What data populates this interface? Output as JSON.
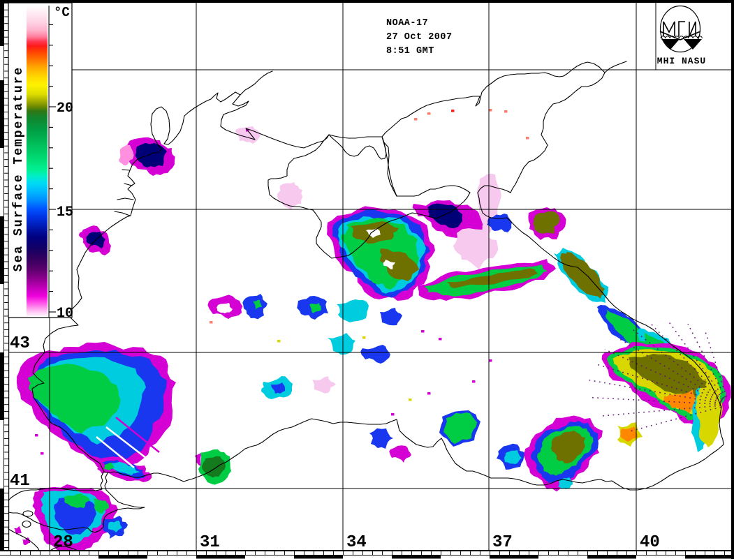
{
  "header": {
    "satellite": "NOAA-17",
    "date": "27 Oct 2007",
    "time": "8:51 GMT"
  },
  "logo": {
    "caption": "MHI NASU"
  },
  "colorbar": {
    "title": "Sea Surface Temperature",
    "unit": "°C",
    "scale_min": 10,
    "scale_max": 25,
    "ticks": [
      {
        "label": "20",
        "value": 20
      },
      {
        "label": "15",
        "value": 15
      },
      {
        "label": "10",
        "value": 10
      }
    ],
    "gradient_stops": [
      [
        0,
        "#ffffff"
      ],
      [
        0.02,
        "#ffeef6"
      ],
      [
        0.05,
        "#ffd6e6"
      ],
      [
        0.08,
        "#ffb2cc"
      ],
      [
        0.1,
        "#ff7f9e"
      ],
      [
        0.115,
        "#ff3a55"
      ],
      [
        0.13,
        "#ff1a1a"
      ],
      [
        0.15,
        "#ff4400"
      ],
      [
        0.175,
        "#ff7700"
      ],
      [
        0.2,
        "#ffaa00"
      ],
      [
        0.23,
        "#ffd900"
      ],
      [
        0.255,
        "#fff200"
      ],
      [
        0.285,
        "#dede00"
      ],
      [
        0.305,
        "#aab200"
      ],
      [
        0.325,
        "#6f8a00"
      ],
      [
        0.34,
        "#2f7714"
      ],
      [
        0.36,
        "#13842c"
      ],
      [
        0.4,
        "#009e44"
      ],
      [
        0.45,
        "#00c05c"
      ],
      [
        0.5,
        "#00df78"
      ],
      [
        0.53,
        "#00f096"
      ],
      [
        0.55,
        "#00eec8"
      ],
      [
        0.57,
        "#00dcf2"
      ],
      [
        0.6,
        "#00b6ff"
      ],
      [
        0.63,
        "#0087ff"
      ],
      [
        0.655,
        "#0052ff"
      ],
      [
        0.685,
        "#002fdd"
      ],
      [
        0.715,
        "#0017ad"
      ],
      [
        0.745,
        "#000080"
      ],
      [
        0.78,
        "#120066"
      ],
      [
        0.815,
        "#34005e"
      ],
      [
        0.85,
        "#5c006e"
      ],
      [
        0.88,
        "#8f008f"
      ],
      [
        0.91,
        "#c400bc"
      ],
      [
        0.935,
        "#ee00dc"
      ],
      [
        0.955,
        "#ff49e6"
      ],
      [
        0.975,
        "#ff9cee"
      ],
      [
        0.99,
        "#ffd6f6"
      ],
      [
        1,
        "#fff2fc"
      ]
    ]
  },
  "grid": {
    "lon_labels": [
      "28",
      "31",
      "34",
      "37",
      "40"
    ],
    "lat_labels": [
      "43",
      "41"
    ]
  },
  "palette": {
    "magenta": "#d400d4",
    "navy": "#000077",
    "blue": "#1837ee",
    "light_blue": "#35a0ff",
    "cyan": "#00ccdf",
    "green": "#00cc44",
    "dark_green": "#157a1e",
    "olive": "#6e7000",
    "yellow": "#d8d800",
    "orange": "#ff8800",
    "salmon": "#ff7f6e",
    "red": "#ee2222",
    "pale_pink": "#f7c9ef",
    "pink": "#ff8fdf",
    "stipple": "#5c0f70",
    "white": "#ffffff"
  }
}
